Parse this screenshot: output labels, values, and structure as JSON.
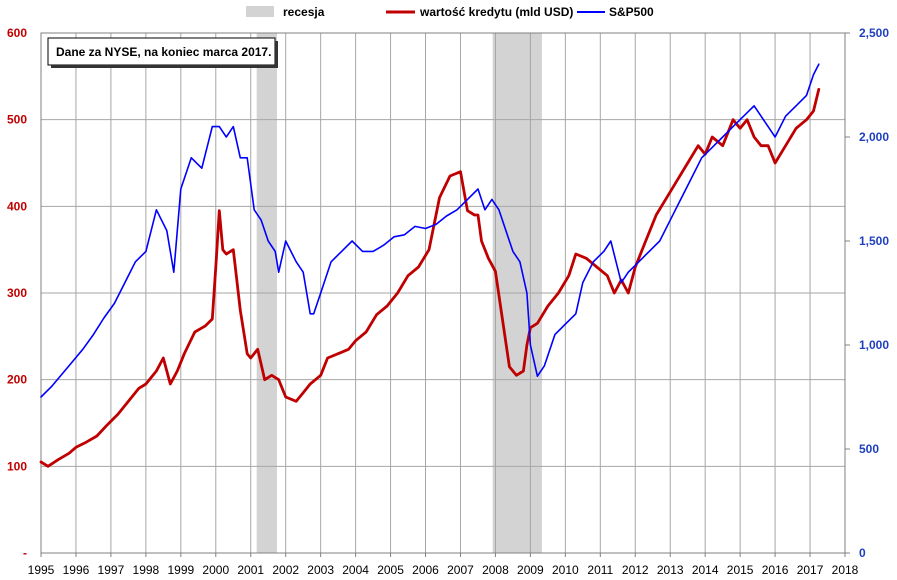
{
  "chart_data": {
    "type": "line",
    "title": "",
    "annotation": "Dane za NYSE, na koniec marca 2017.",
    "legend": {
      "placement": "top-center",
      "entries": [
        {
          "label": "recesja",
          "kind": "band",
          "color": "#d3d3d3"
        },
        {
          "label": "wartość kredytu (mld USD)",
          "kind": "line",
          "color": "#c00000"
        },
        {
          "label": "S&P500",
          "kind": "line",
          "color": "#0000ff"
        }
      ]
    },
    "x_axis": {
      "range": [
        1995,
        2018
      ],
      "ticks": [
        1995,
        1996,
        1997,
        1998,
        1999,
        2000,
        2001,
        2002,
        2003,
        2004,
        2005,
        2006,
        2007,
        2008,
        2009,
        2010,
        2011,
        2012,
        2013,
        2014,
        2015,
        2016,
        2017,
        2018
      ],
      "labels": [
        "1995",
        "1996",
        "1997",
        "1998",
        "1999",
        "2000",
        "2001",
        "2002",
        "2003",
        "2004",
        "2005",
        "2006",
        "2007",
        "2008",
        "2009",
        "2010",
        "2011",
        "2012",
        "2013",
        "2014",
        "2015",
        "2016",
        "2017",
        "2018"
      ]
    },
    "y_left": {
      "range": [
        0,
        600
      ],
      "ticks": [
        0,
        100,
        200,
        300,
        400,
        500,
        600
      ],
      "labels": [
        "-",
        "100",
        "200",
        "300",
        "400",
        "500",
        "600"
      ],
      "color": "#c00000"
    },
    "y_right": {
      "range": [
        0,
        2500
      ],
      "ticks": [
        0,
        500,
        1000,
        1500,
        2000,
        2500
      ],
      "labels": [
        "0",
        "500",
        "1,000",
        "1,500",
        "2,000",
        "2,500"
      ],
      "color": "#1f3fbf"
    },
    "grid": true,
    "recessions": [
      {
        "start": 2001.17,
        "end": 2001.75
      },
      {
        "start": 2007.92,
        "end": 2009.33
      }
    ],
    "series": [
      {
        "name": "wartość kredytu (mld USD)",
        "axis": "left",
        "color": "#c00000",
        "x": [
          1995.0,
          1995.2,
          1995.5,
          1995.8,
          1996.0,
          1996.3,
          1996.6,
          1996.9,
          1997.2,
          1997.5,
          1997.8,
          1998.0,
          1998.3,
          1998.5,
          1998.7,
          1998.9,
          1999.1,
          1999.4,
          1999.7,
          1999.9,
          2000.0,
          2000.1,
          2000.2,
          2000.3,
          2000.5,
          2000.7,
          2000.9,
          2001.0,
          2001.2,
          2001.4,
          2001.6,
          2001.8,
          2002.0,
          2002.3,
          2002.5,
          2002.7,
          2003.0,
          2003.2,
          2003.5,
          2003.8,
          2004.0,
          2004.3,
          2004.6,
          2004.9,
          2005.2,
          2005.5,
          2005.8,
          2006.1,
          2006.4,
          2006.7,
          2007.0,
          2007.2,
          2007.4,
          2007.5,
          2007.6,
          2007.8,
          2008.0,
          2008.2,
          2008.4,
          2008.6,
          2008.8,
          2008.9,
          2009.0,
          2009.2,
          2009.5,
          2009.8,
          2010.1,
          2010.3,
          2010.6,
          2010.9,
          2011.2,
          2011.4,
          2011.6,
          2011.8,
          2012.0,
          2012.3,
          2012.6,
          2012.9,
          2013.2,
          2013.5,
          2013.8,
          2014.0,
          2014.2,
          2014.5,
          2014.8,
          2015.0,
          2015.2,
          2015.4,
          2015.6,
          2015.8,
          2016.0,
          2016.3,
          2016.6,
          2016.9,
          2017.1,
          2017.25
        ],
        "values": [
          105,
          100,
          108,
          115,
          122,
          128,
          135,
          148,
          160,
          175,
          190,
          195,
          210,
          225,
          195,
          210,
          230,
          255,
          262,
          270,
          330,
          395,
          350,
          345,
          350,
          280,
          230,
          225,
          235,
          200,
          205,
          200,
          180,
          175,
          185,
          195,
          205,
          225,
          230,
          235,
          245,
          255,
          275,
          285,
          300,
          320,
          330,
          350,
          410,
          435,
          440,
          395,
          390,
          390,
          360,
          340,
          325,
          270,
          215,
          205,
          210,
          240,
          260,
          265,
          285,
          300,
          320,
          345,
          340,
          330,
          320,
          300,
          315,
          300,
          330,
          360,
          390,
          410,
          430,
          450,
          470,
          460,
          480,
          470,
          500,
          490,
          500,
          480,
          470,
          470,
          450,
          470,
          490,
          500,
          510,
          535
        ]
      },
      {
        "name": "S&P500",
        "axis": "right",
        "color": "#0000ff",
        "x": [
          1995.0,
          1995.3,
          1995.6,
          1995.9,
          1996.2,
          1996.5,
          1996.8,
          1997.1,
          1997.4,
          1997.7,
          1998.0,
          1998.3,
          1998.6,
          1998.8,
          1999.0,
          1999.3,
          1999.6,
          1999.9,
          2000.1,
          2000.3,
          2000.5,
          2000.7,
          2000.9,
          2001.1,
          2001.3,
          2001.5,
          2001.7,
          2001.8,
          2002.0,
          2002.3,
          2002.5,
          2002.7,
          2002.8,
          2003.0,
          2003.3,
          2003.6,
          2003.9,
          2004.2,
          2004.5,
          2004.8,
          2005.1,
          2005.4,
          2005.7,
          2006.0,
          2006.3,
          2006.6,
          2006.9,
          2007.2,
          2007.5,
          2007.7,
          2007.9,
          2008.1,
          2008.3,
          2008.5,
          2008.7,
          2008.9,
          2009.0,
          2009.2,
          2009.4,
          2009.7,
          2010.0,
          2010.3,
          2010.5,
          2010.8,
          2011.1,
          2011.3,
          2011.6,
          2011.8,
          2012.1,
          2012.4,
          2012.7,
          2013.0,
          2013.3,
          2013.6,
          2013.9,
          2014.2,
          2014.5,
          2014.8,
          2015.1,
          2015.4,
          2015.6,
          2015.8,
          2016.0,
          2016.3,
          2016.6,
          2016.9,
          2017.1,
          2017.25
        ],
        "values": [
          750,
          800,
          860,
          920,
          980,
          1050,
          1130,
          1200,
          1300,
          1400,
          1450,
          1650,
          1550,
          1350,
          1750,
          1900,
          1850,
          2050,
          2050,
          2000,
          2050,
          1900,
          1900,
          1650,
          1600,
          1500,
          1450,
          1350,
          1500,
          1400,
          1350,
          1150,
          1150,
          1250,
          1400,
          1450,
          1500,
          1450,
          1450,
          1480,
          1520,
          1530,
          1570,
          1560,
          1580,
          1620,
          1650,
          1700,
          1750,
          1650,
          1700,
          1650,
          1550,
          1450,
          1400,
          1250,
          1000,
          850,
          900,
          1050,
          1100,
          1150,
          1300,
          1400,
          1450,
          1500,
          1300,
          1350,
          1400,
          1450,
          1500,
          1600,
          1700,
          1800,
          1900,
          1950,
          2000,
          2050,
          2100,
          2150,
          2100,
          2050,
          2000,
          2100,
          2150,
          2200,
          2300,
          2350
        ]
      }
    ]
  }
}
